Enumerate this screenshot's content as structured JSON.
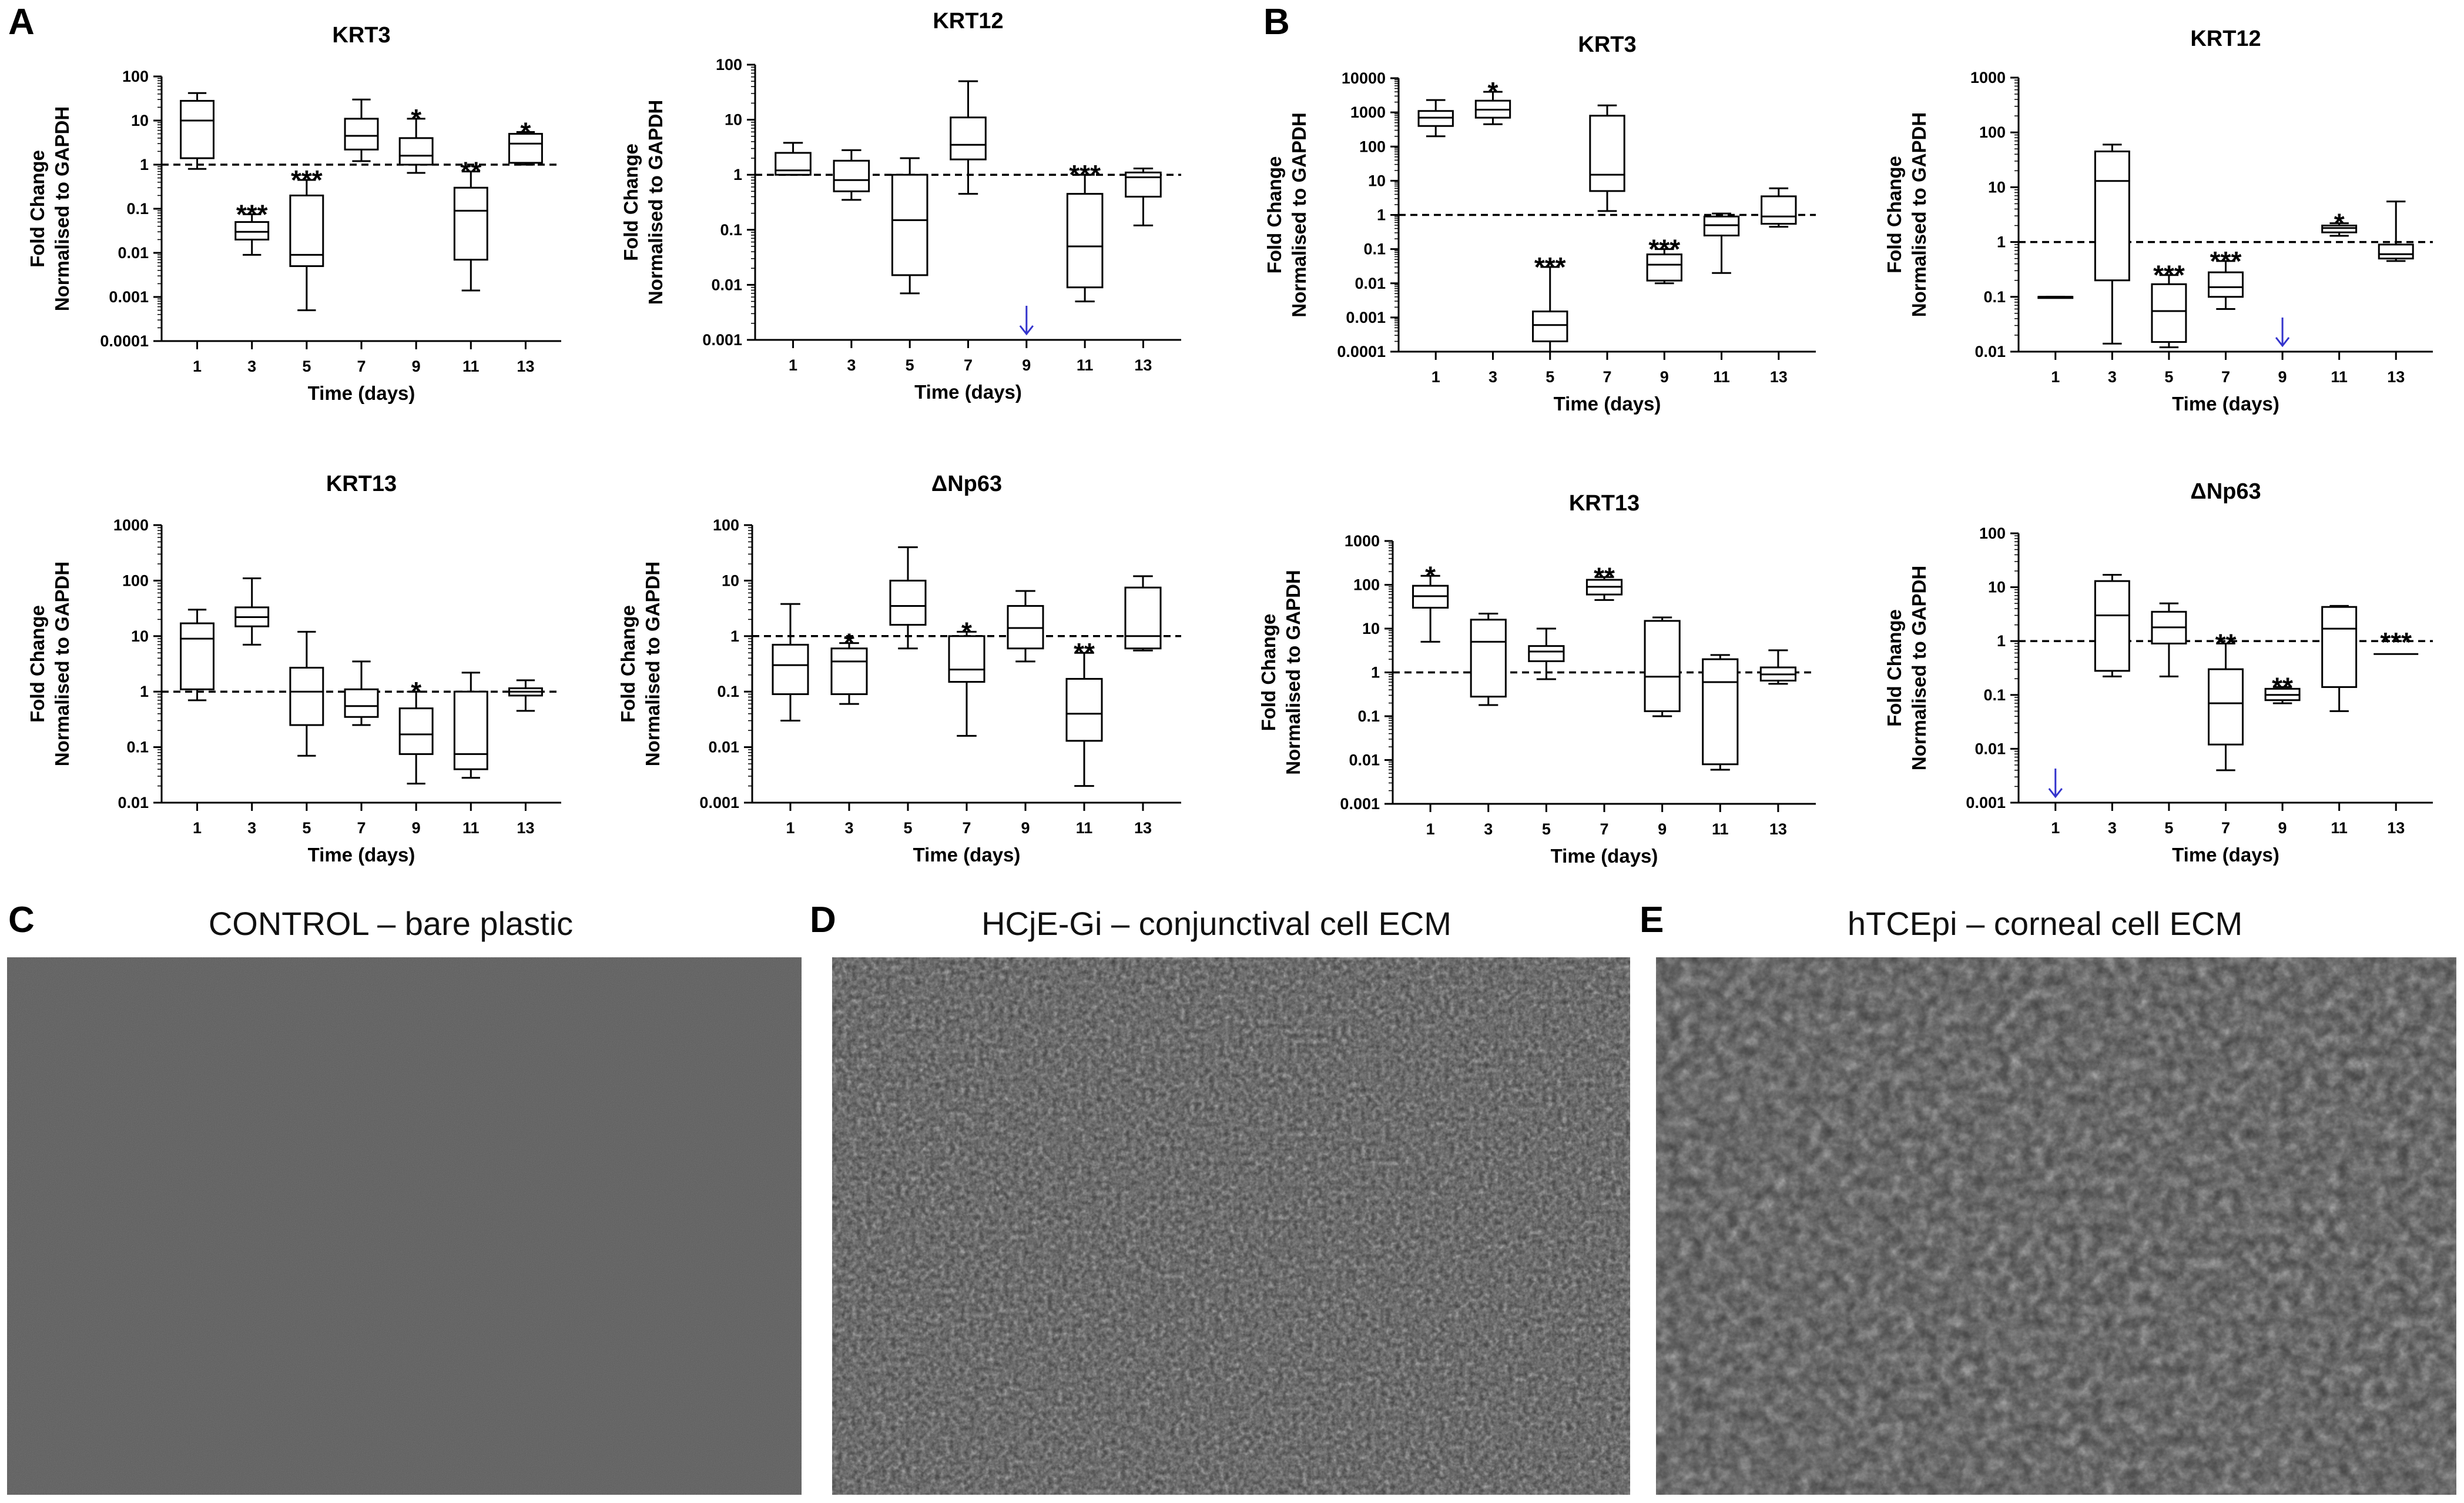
{
  "figure": {
    "panel_labels": [
      "A",
      "B",
      "C",
      "D",
      "E"
    ],
    "xlabel": "Time (days)",
    "ylabel_line1": "Fold Change",
    "ylabel_line2": "Normalised to GAPDH"
  },
  "colors": {
    "ink": "#000000",
    "arrow": "#3333cc",
    "micrograph_control": "#5a5a5a",
    "micrograph_hcje": "#707070",
    "micrograph_htcepi": "#6e6e6e"
  },
  "chart_data": [
    {
      "panel": "A",
      "type": "box",
      "title": "KRT3",
      "yscale": "log",
      "ylim": [
        0.0001,
        100
      ],
      "ytick_labels": [
        "0.0001",
        "0.001",
        "0.01",
        "0.1",
        "1",
        "10",
        "100"
      ],
      "categories": [
        "1",
        "3",
        "5",
        "7",
        "9",
        "11",
        "13"
      ],
      "reference_line": 1,
      "boxes": [
        {
          "x": "1",
          "min": 0.8,
          "q1": 1.4,
          "median": 10,
          "q3": 28,
          "max": 42,
          "sig": ""
        },
        {
          "x": "3",
          "min": 0.009,
          "q1": 0.02,
          "median": 0.03,
          "q3": 0.05,
          "max": 0.075,
          "sig": "***"
        },
        {
          "x": "5",
          "min": 0.0005,
          "q1": 0.005,
          "median": 0.009,
          "q3": 0.2,
          "max": 0.45,
          "sig": "***"
        },
        {
          "x": "7",
          "min": 1.2,
          "q1": 2.2,
          "median": 4.5,
          "q3": 11,
          "max": 30,
          "sig": ""
        },
        {
          "x": "9",
          "min": 0.65,
          "q1": 1.0,
          "median": 1.6,
          "q3": 4,
          "max": 11,
          "sig": "*"
        },
        {
          "x": "11",
          "min": 0.0014,
          "q1": 0.007,
          "median": 0.09,
          "q3": 0.3,
          "max": 0.7,
          "sig": "**"
        },
        {
          "x": "13",
          "min": 1.0,
          "q1": 1.1,
          "median": 3,
          "q3": 5,
          "max": 5.5,
          "sig": "*"
        }
      ]
    },
    {
      "panel": "A",
      "type": "box",
      "title": "KRT12",
      "yscale": "log",
      "ylim": [
        0.001,
        100
      ],
      "ytick_labels": [
        "0.001",
        "0.01",
        "0.1",
        "1",
        "10",
        "100"
      ],
      "categories": [
        "1",
        "3",
        "5",
        "7",
        "9",
        "11",
        "13"
      ],
      "reference_line": 1,
      "boxes": [
        {
          "x": "1",
          "min": 1.0,
          "q1": 1.0,
          "median": 1.2,
          "q3": 2.5,
          "max": 3.8,
          "sig": ""
        },
        {
          "x": "3",
          "min": 0.35,
          "q1": 0.5,
          "median": 0.8,
          "q3": 1.8,
          "max": 2.8,
          "sig": ""
        },
        {
          "x": "5",
          "min": 0.007,
          "q1": 0.015,
          "median": 0.15,
          "q3": 1.0,
          "max": 2.0,
          "sig": ""
        },
        {
          "x": "7",
          "min": 0.45,
          "q1": 1.9,
          "median": 3.5,
          "q3": 11,
          "max": 50,
          "sig": ""
        },
        {
          "x": "9",
          "missing": true,
          "sig": ""
        },
        {
          "x": "11",
          "min": 0.005,
          "q1": 0.009,
          "median": 0.05,
          "q3": 0.45,
          "max": 1.0,
          "sig": "***"
        },
        {
          "x": "13",
          "min": 0.12,
          "q1": 0.4,
          "median": 0.9,
          "q3": 1.1,
          "max": 1.3,
          "sig": ""
        }
      ]
    },
    {
      "panel": "B",
      "type": "box",
      "title": "KRT3",
      "yscale": "log",
      "ylim": [
        0.0001,
        10000
      ],
      "ytick_labels": [
        "0.0001",
        "0.001",
        "0.01",
        "0.1",
        "1",
        "10",
        "100",
        "1000",
        "10000"
      ],
      "categories": [
        "1",
        "3",
        "5",
        "7",
        "9",
        "11",
        "13"
      ],
      "reference_line": 1,
      "boxes": [
        {
          "x": "1",
          "min": 200,
          "q1": 400,
          "median": 700,
          "q3": 1100,
          "max": 2300,
          "sig": ""
        },
        {
          "x": "3",
          "min": 450,
          "q1": 700,
          "median": 1200,
          "q3": 2200,
          "max": 4000,
          "sig": "*"
        },
        {
          "x": "5",
          "min": 0.0001,
          "q1": 0.0002,
          "median": 0.0006,
          "q3": 0.0015,
          "max": 0.03,
          "sig": "***"
        },
        {
          "x": "7",
          "min": 1.3,
          "q1": 5,
          "median": 15,
          "q3": 800,
          "max": 1600,
          "sig": ""
        },
        {
          "x": "9",
          "min": 0.01,
          "q1": 0.012,
          "median": 0.035,
          "q3": 0.07,
          "max": 0.1,
          "sig": "***"
        },
        {
          "x": "11",
          "min": 0.02,
          "q1": 0.25,
          "median": 0.5,
          "q3": 0.9,
          "max": 1.1,
          "sig": ""
        },
        {
          "x": "13",
          "min": 0.45,
          "q1": 0.55,
          "median": 0.9,
          "q3": 3.5,
          "max": 6,
          "sig": ""
        }
      ]
    },
    {
      "panel": "B",
      "type": "box",
      "title": "KRT12",
      "yscale": "log",
      "ylim": [
        0.01,
        1000
      ],
      "ytick_labels": [
        "0.01",
        "0.1",
        "1",
        "10",
        "100",
        "1000"
      ],
      "categories": [
        "1",
        "3",
        "5",
        "7",
        "9",
        "11",
        "13"
      ],
      "reference_line": 1,
      "boxes": [
        {
          "x": "1",
          "min": 0.1,
          "q1": 0.1,
          "median": 0.1,
          "q3": 0.1,
          "max": 0.1,
          "sig": ""
        },
        {
          "x": "3",
          "min": 0.014,
          "q1": 0.2,
          "median": 13,
          "q3": 45,
          "max": 60,
          "sig": ""
        },
        {
          "x": "5",
          "min": 0.012,
          "q1": 0.015,
          "median": 0.055,
          "q3": 0.17,
          "max": 0.25,
          "sig": "***"
        },
        {
          "x": "7",
          "min": 0.06,
          "q1": 0.1,
          "median": 0.15,
          "q3": 0.28,
          "max": 0.45,
          "sig": "***"
        },
        {
          "x": "9",
          "missing": true,
          "sig": ""
        },
        {
          "x": "11",
          "min": 1.3,
          "q1": 1.5,
          "median": 1.8,
          "q3": 2.0,
          "max": 2.2,
          "sig": "*"
        },
        {
          "x": "13",
          "min": 0.45,
          "q1": 0.5,
          "median": 0.6,
          "q3": 0.9,
          "max": 5.5,
          "sig": ""
        }
      ]
    },
    {
      "panel": "A",
      "type": "box",
      "title": "KRT13",
      "yscale": "log",
      "ylim": [
        0.01,
        1000
      ],
      "ytick_labels": [
        "0.01",
        "0.1",
        "1",
        "10",
        "100",
        "1000"
      ],
      "categories": [
        "1",
        "3",
        "5",
        "7",
        "9",
        "11",
        "13"
      ],
      "reference_line": 1,
      "boxes": [
        {
          "x": "1",
          "min": 0.7,
          "q1": 1.1,
          "median": 9,
          "q3": 17,
          "max": 30,
          "sig": ""
        },
        {
          "x": "3",
          "min": 7,
          "q1": 15,
          "median": 22,
          "q3": 33,
          "max": 110,
          "sig": ""
        },
        {
          "x": "5",
          "min": 0.07,
          "q1": 0.25,
          "median": 1.0,
          "q3": 2.7,
          "max": 12,
          "sig": ""
        },
        {
          "x": "7",
          "min": 0.25,
          "q1": 0.35,
          "median": 0.55,
          "q3": 1.1,
          "max": 3.5,
          "sig": ""
        },
        {
          "x": "9",
          "min": 0.022,
          "q1": 0.075,
          "median": 0.17,
          "q3": 0.5,
          "max": 1.0,
          "sig": "*"
        },
        {
          "x": "11",
          "min": 0.028,
          "q1": 0.04,
          "median": 0.075,
          "q3": 1.0,
          "max": 2.2,
          "sig": ""
        },
        {
          "x": "13",
          "min": 0.45,
          "q1": 0.85,
          "median": 1.0,
          "q3": 1.15,
          "max": 1.6,
          "sig": ""
        }
      ]
    },
    {
      "panel": "A",
      "type": "box",
      "title": "ΔNp63",
      "yscale": "log",
      "ylim": [
        0.001,
        100
      ],
      "ytick_labels": [
        "0.001",
        "0.01",
        "0.1",
        "1",
        "10",
        "100"
      ],
      "categories": [
        "1",
        "3",
        "5",
        "7",
        "9",
        "11",
        "13"
      ],
      "reference_line": 1,
      "boxes": [
        {
          "x": "1",
          "min": 0.03,
          "q1": 0.09,
          "median": 0.3,
          "q3": 0.7,
          "max": 3.8,
          "sig": ""
        },
        {
          "x": "3",
          "min": 0.06,
          "q1": 0.09,
          "median": 0.35,
          "q3": 0.6,
          "max": 0.75,
          "sig": "*"
        },
        {
          "x": "5",
          "min": 0.6,
          "q1": 1.6,
          "median": 3.5,
          "q3": 10,
          "max": 40,
          "sig": ""
        },
        {
          "x": "7",
          "min": 0.016,
          "q1": 0.15,
          "median": 0.25,
          "q3": 1.0,
          "max": 1.2,
          "sig": "*"
        },
        {
          "x": "9",
          "min": 0.35,
          "q1": 0.6,
          "median": 1.4,
          "q3": 3.5,
          "max": 6.5,
          "sig": ""
        },
        {
          "x": "11",
          "min": 0.002,
          "q1": 0.013,
          "median": 0.04,
          "q3": 0.17,
          "max": 0.5,
          "sig": "**"
        },
        {
          "x": "13",
          "min": 0.55,
          "q1": 0.6,
          "median": 1.0,
          "q3": 7.5,
          "max": 12,
          "sig": ""
        }
      ]
    },
    {
      "panel": "B",
      "type": "box",
      "title": "KRT13",
      "yscale": "log",
      "ylim": [
        0.001,
        1000
      ],
      "ytick_labels": [
        "0.001",
        "0.01",
        "0.1",
        "1",
        "10",
        "100",
        "1000"
      ],
      "categories": [
        "1",
        "3",
        "5",
        "7",
        "9",
        "11",
        "13"
      ],
      "reference_line": 1,
      "boxes": [
        {
          "x": "1",
          "min": 5,
          "q1": 30,
          "median": 55,
          "q3": 95,
          "max": 160,
          "sig": "*"
        },
        {
          "x": "3",
          "min": 0.18,
          "q1": 0.28,
          "median": 5,
          "q3": 16,
          "max": 22,
          "sig": ""
        },
        {
          "x": "5",
          "min": 0.7,
          "q1": 1.8,
          "median": 3,
          "q3": 4,
          "max": 10,
          "sig": ""
        },
        {
          "x": "7",
          "min": 45,
          "q1": 60,
          "median": 90,
          "q3": 130,
          "max": 150,
          "sig": "**"
        },
        {
          "x": "9",
          "min": 0.1,
          "q1": 0.13,
          "median": 0.8,
          "q3": 15,
          "max": 18,
          "sig": ""
        },
        {
          "x": "11",
          "min": 0.006,
          "q1": 0.008,
          "median": 0.6,
          "q3": 2,
          "max": 2.5,
          "sig": ""
        },
        {
          "x": "13",
          "min": 0.55,
          "q1": 0.65,
          "median": 0.9,
          "q3": 1.3,
          "max": 3.2,
          "sig": ""
        }
      ]
    },
    {
      "panel": "B",
      "type": "box",
      "title": "ΔNp63",
      "yscale": "log",
      "ylim": [
        0.001,
        100
      ],
      "ytick_labels": [
        "0.001",
        "0.01",
        "0.1",
        "1",
        "10",
        "100"
      ],
      "categories": [
        "1",
        "3",
        "5",
        "7",
        "9",
        "11",
        "13"
      ],
      "reference_line": 1,
      "boxes": [
        {
          "x": "1",
          "missing": true,
          "sig": ""
        },
        {
          "x": "3",
          "min": 0.22,
          "q1": 0.28,
          "median": 3,
          "q3": 13,
          "max": 17,
          "sig": ""
        },
        {
          "x": "5",
          "min": 0.22,
          "q1": 0.9,
          "median": 1.8,
          "q3": 3.5,
          "max": 5,
          "sig": ""
        },
        {
          "x": "7",
          "min": 0.004,
          "q1": 0.012,
          "median": 0.07,
          "q3": 0.3,
          "max": 0.9,
          "sig": "**"
        },
        {
          "x": "9",
          "min": 0.07,
          "q1": 0.08,
          "median": 0.1,
          "q3": 0.13,
          "max": 0.14,
          "sig": "**"
        },
        {
          "x": "11",
          "min": 0.05,
          "q1": 0.14,
          "median": 1.7,
          "q3": 4.3,
          "max": 4.5,
          "sig": ""
        },
        {
          "x": "13",
          "missing": true,
          "sig": "***"
        }
      ]
    }
  ],
  "micrographs": [
    {
      "letter": "C",
      "caption": "CONTROL – bare plastic",
      "texture": "smooth"
    },
    {
      "letter": "D",
      "caption": "HCjE-Gi – conjunctival cell ECM",
      "texture": "granular"
    },
    {
      "letter": "E",
      "caption": "hTCEpi – corneal cell ECM",
      "texture": "coarse"
    }
  ]
}
